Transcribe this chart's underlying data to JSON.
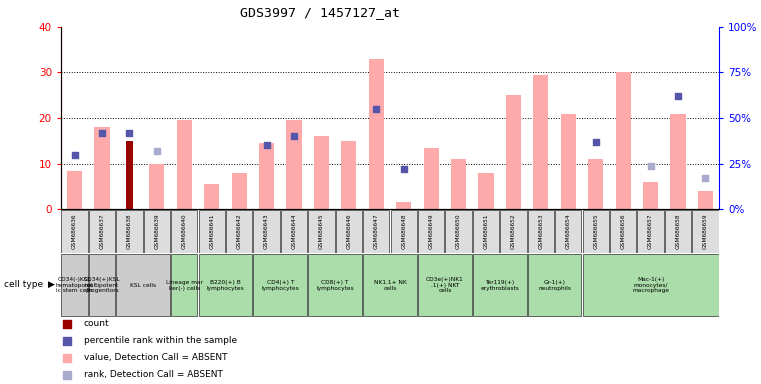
{
  "title": "GDS3997 / 1457127_at",
  "gsm_labels": [
    "GSM686636",
    "GSM686637",
    "GSM686638",
    "GSM686639",
    "GSM686640",
    "GSM686641",
    "GSM686642",
    "GSM686643",
    "GSM686644",
    "GSM686645",
    "GSM686646",
    "GSM686647",
    "GSM686648",
    "GSM686649",
    "GSM686650",
    "GSM686651",
    "GSM686652",
    "GSM686653",
    "GSM686654",
    "GSM686655",
    "GSM686656",
    "GSM686657",
    "GSM686658",
    "GSM686659"
  ],
  "pink_bars": [
    8.5,
    18.0,
    0.0,
    10.0,
    19.5,
    5.5,
    8.0,
    14.5,
    19.5,
    16.0,
    15.0,
    33.0,
    1.5,
    13.5,
    11.0,
    8.0,
    25.0,
    29.5,
    21.0,
    11.0,
    30.0,
    6.0,
    21.0,
    4.0
  ],
  "dark_red_bars": [
    0,
    0,
    15.0,
    0,
    0,
    0,
    0,
    0,
    0,
    0,
    0,
    0,
    0,
    0,
    0,
    0,
    0,
    0,
    0,
    0,
    0,
    0,
    0,
    0
  ],
  "blue_pct": [
    30,
    42,
    42,
    null,
    null,
    null,
    null,
    35,
    40,
    null,
    null,
    55,
    22,
    null,
    null,
    null,
    null,
    null,
    null,
    37,
    null,
    null,
    62,
    null
  ],
  "light_blue_pct": [
    null,
    null,
    null,
    32,
    null,
    null,
    null,
    null,
    null,
    null,
    null,
    null,
    null,
    null,
    null,
    null,
    null,
    null,
    null,
    null,
    null,
    24,
    null,
    17
  ],
  "cell_type_groups": [
    {
      "start": 0,
      "end": 0,
      "color": "#cccccc",
      "label": "CD34(-)KSL\nhematopoiet\nic stem cells"
    },
    {
      "start": 1,
      "end": 1,
      "color": "#cccccc",
      "label": "CD34(+)KSL\nmultipotent\nprogenitors"
    },
    {
      "start": 2,
      "end": 3,
      "color": "#cccccc",
      "label": "KSL cells"
    },
    {
      "start": 4,
      "end": 4,
      "color": "#aaddaa",
      "label": "Lineage mar\nker(-) cells"
    },
    {
      "start": 5,
      "end": 6,
      "color": "#aaddaa",
      "label": "B220(+) B\nlymphocytes"
    },
    {
      "start": 7,
      "end": 8,
      "color": "#aaddaa",
      "label": "CD4(+) T\nlymphocytes"
    },
    {
      "start": 9,
      "end": 10,
      "color": "#aaddaa",
      "label": "CD8(+) T\nlymphocytes"
    },
    {
      "start": 11,
      "end": 12,
      "color": "#aaddaa",
      "label": "NK1.1+ NK\ncells"
    },
    {
      "start": 13,
      "end": 14,
      "color": "#aaddaa",
      "label": "CD3e(+)NK1\n.1(+) NKT\ncells"
    },
    {
      "start": 15,
      "end": 16,
      "color": "#aaddaa",
      "label": "Ter119(+)\nerythroblasts"
    },
    {
      "start": 17,
      "end": 18,
      "color": "#aaddaa",
      "label": "Gr-1(+)\nneutrophils"
    },
    {
      "start": 19,
      "end": 23,
      "color": "#aaddaa",
      "label": "Mac-1(+)\nmonocytes/\nmacrophage"
    }
  ],
  "ylim_left": [
    0,
    40
  ],
  "ylim_right": [
    0,
    100
  ],
  "yticks_left": [
    0,
    10,
    20,
    30,
    40
  ],
  "yticks_right": [
    0,
    25,
    50,
    75,
    100
  ],
  "bar_width": 0.55,
  "pink_color": "#ffaaaa",
  "dark_red_color": "#990000",
  "blue_color": "#5555aa",
  "light_blue_color": "#aaaacc"
}
